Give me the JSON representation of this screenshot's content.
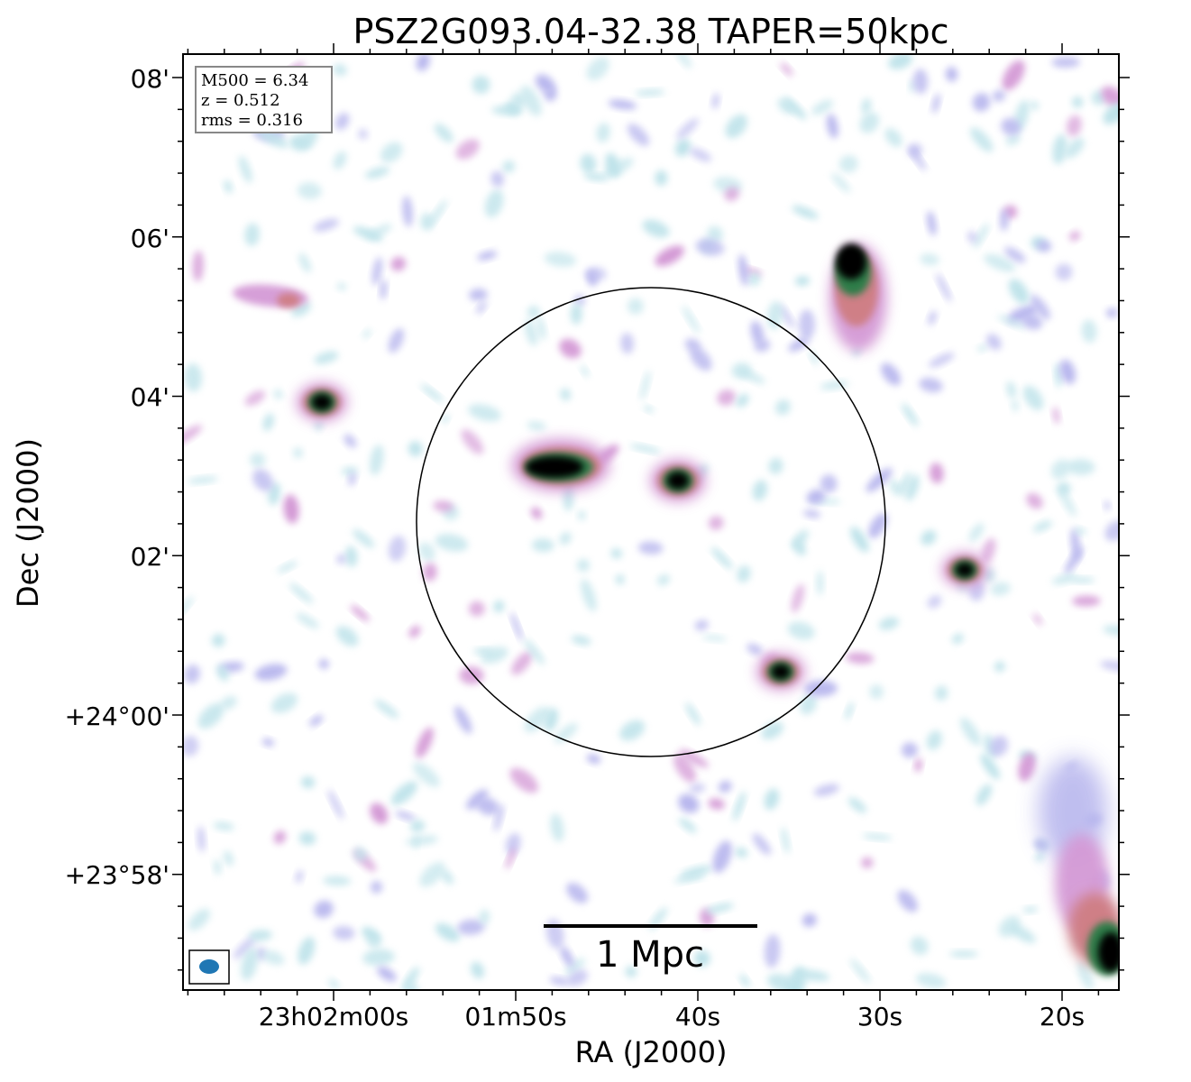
{
  "chart_data": {
    "type": "heatmap",
    "title": "PSZ2G093.04-32.38 TAPER=50kpc",
    "xlabel": "RA (J2000)",
    "ylabel": "Dec (J2000)",
    "x_ticks": [
      "23h02m00s",
      "01m50s",
      "40s",
      "30s",
      "20s"
    ],
    "y_ticks": [
      "08'",
      "06'",
      "04'",
      "02'",
      "+24°00'",
      "+23°58'"
    ],
    "info_box": [
      "M500 = 6.34",
      "z = 0.512",
      "rms = 0.316"
    ],
    "scale_bar_label": "1 Mpc",
    "colors": {
      "faint": "#bfe3ea",
      "low": "#b9b8ee",
      "mid": "#d49ad6",
      "high": "#cf7f86",
      "peak": "#2e7d4a",
      "core": "#000000",
      "circle": "#000000",
      "beam": "#1f77b4"
    },
    "sources": [
      {
        "ra": "23h01m48s",
        "dec": "+24°03.1'",
        "strength": "bright"
      },
      {
        "ra": "23h01m41s",
        "dec": "+24°02.9'",
        "strength": "bright"
      },
      {
        "ra": "23h01m35s",
        "dec": "+24°00.5'",
        "strength": "bright"
      },
      {
        "ra": "23h02m01s",
        "dec": "+24°03.9'",
        "strength": "bright"
      },
      {
        "ra": "23h02m03s",
        "dec": "+24°05.2'",
        "strength": "moderate"
      },
      {
        "ra": "23h01m31s",
        "dec": "+24°05.7'",
        "strength": "bright, extended"
      },
      {
        "ra": "23h01m25s",
        "dec": "+24°01.8'",
        "strength": "bright"
      },
      {
        "ra": "23h01m17s",
        "dec": "+23°57.2'",
        "strength": "bright, extended"
      }
    ]
  }
}
